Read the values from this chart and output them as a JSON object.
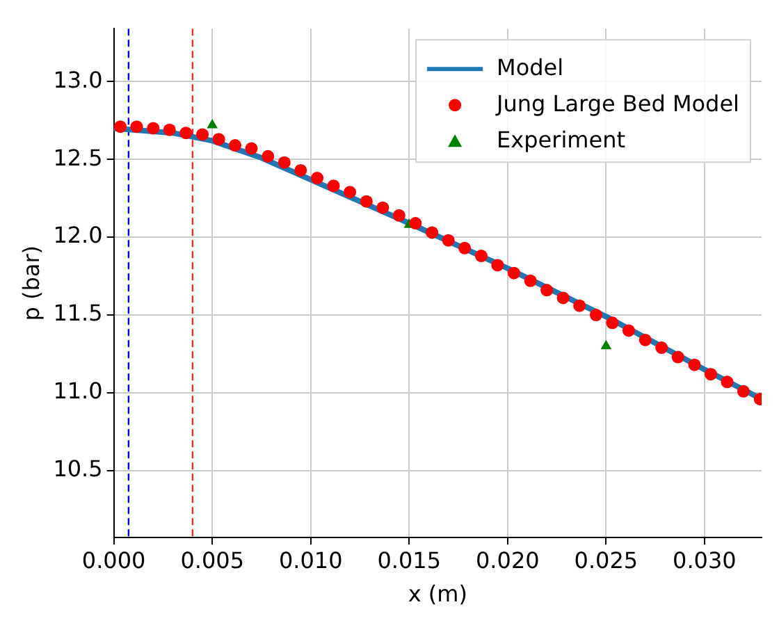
{
  "chart_data": {
    "type": "scatter",
    "xlabel": "x (m)",
    "ylabel": "p (bar)",
    "xlim": [
      0,
      0.0329
    ],
    "ylim": [
      10.07,
      13.34
    ],
    "xticks": [
      {
        "value": 0,
        "label": "0.000"
      },
      {
        "value": 0.005,
        "label": "0.005"
      },
      {
        "value": 0.01,
        "label": "0.010"
      },
      {
        "value": 0.015,
        "label": "0.015"
      },
      {
        "value": 0.02,
        "label": "0.020"
      },
      {
        "value": 0.025,
        "label": "0.025"
      },
      {
        "value": 0.03,
        "label": "0.030"
      }
    ],
    "yticks": [
      10.5,
      {
        "value": 11,
        "label": "11.0"
      },
      11.5,
      {
        "value": 12,
        "label": "12.0"
      },
      12.5,
      {
        "value": 13,
        "label": "13.0"
      }
    ],
    "grid": true,
    "legend": "top right",
    "ref_lines": [
      {
        "axis": "x",
        "value": 0.00075,
        "label": null,
        "color": "#0000ff",
        "line_style": "dashed"
      },
      {
        "axis": "x",
        "value": 0.004,
        "label": null,
        "color": "#e8302a",
        "line_style": "dashed"
      }
    ],
    "series": [
      {
        "name": "Model",
        "type": "line",
        "color": "#1f77b4",
        "marker": "none",
        "line_style": "solid",
        "x": [
          0,
          0.003,
          0.005,
          0.0075,
          0.01,
          0.0125,
          0.015,
          0.02,
          0.025,
          0.03,
          0.0329
        ],
        "values": [
          12.7,
          12.67,
          12.62,
          12.51,
          12.37,
          12.23,
          12.09,
          11.8,
          11.49,
          11.15,
          10.96
        ]
      },
      {
        "name": "Jung Large Bed Model",
        "type": "scatter",
        "color": "#ff0000",
        "marker": "circle",
        "x": [
          0.00033,
          0.00116,
          0.002,
          0.00283,
          0.00366,
          0.0045,
          0.00533,
          0.00616,
          0.00699,
          0.00783,
          0.00866,
          0.00949,
          0.01033,
          0.01116,
          0.01199,
          0.01283,
          0.01366,
          0.01449,
          0.01532,
          0.01616,
          0.01699,
          0.01782,
          0.01866,
          0.01949,
          0.02032,
          0.02116,
          0.02199,
          0.02282,
          0.02365,
          0.02449,
          0.02532,
          0.02615,
          0.02699,
          0.02782,
          0.02865,
          0.02949,
          0.03032,
          0.03115,
          0.03198,
          0.03282
        ],
        "values": [
          12.71,
          12.71,
          12.7,
          12.69,
          12.67,
          12.66,
          12.63,
          12.59,
          12.57,
          12.52,
          12.48,
          12.43,
          12.38,
          12.33,
          12.29,
          12.23,
          12.19,
          12.14,
          12.09,
          12.03,
          11.98,
          11.93,
          11.88,
          11.82,
          11.77,
          11.72,
          11.66,
          11.61,
          11.56,
          11.5,
          11.45,
          11.4,
          11.34,
          11.29,
          11.23,
          11.18,
          11.12,
          11.07,
          11.01,
          10.96
        ]
      },
      {
        "name": "Experiment",
        "type": "scatter",
        "color": "#008000",
        "marker": "triangle",
        "x": [
          0.005,
          0.015,
          0.025
        ],
        "values": [
          12.72,
          12.08,
          11.3
        ]
      }
    ]
  }
}
